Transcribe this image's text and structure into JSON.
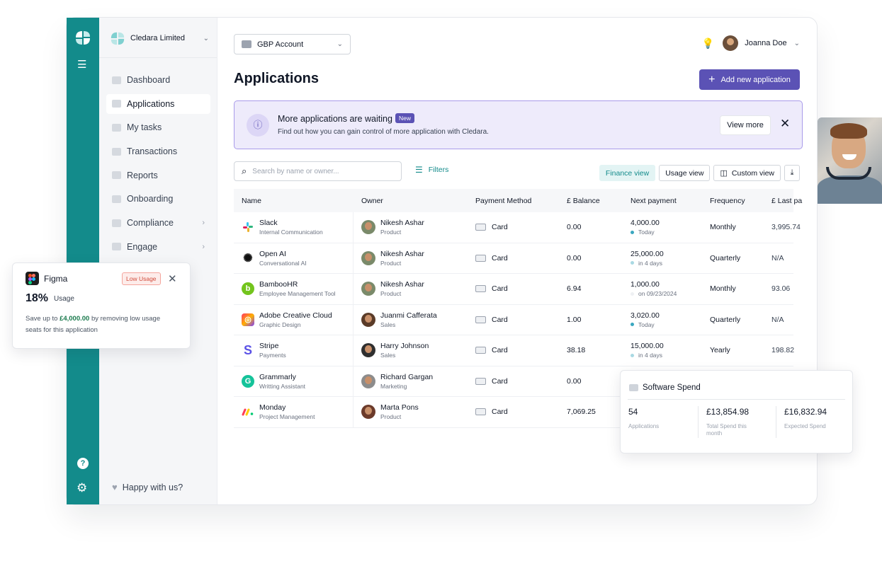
{
  "org": {
    "name": "Cledara Limited"
  },
  "sidebar": {
    "items": [
      {
        "label": "Dashboard"
      },
      {
        "label": "Applications"
      },
      {
        "label": "My tasks"
      },
      {
        "label": "Transactions"
      },
      {
        "label": "Reports"
      },
      {
        "label": "Onboarding"
      },
      {
        "label": "Compliance"
      },
      {
        "label": "Engage"
      }
    ],
    "footer": "Happy with us?"
  },
  "header": {
    "account": "GBP Account",
    "user_name": "Joanna Doe"
  },
  "page": {
    "title": "Applications",
    "add_button": "Add new application"
  },
  "banner": {
    "title": "More applications are waiting",
    "badge": "New",
    "subtitle": "Find out how you can gain control of more application with Cledara.",
    "view_more": "View more"
  },
  "toolbar": {
    "search_placeholder": "Search by name or owner...",
    "filters": "Filters",
    "finance_view": "Finance view",
    "usage_view": "Usage view",
    "custom_view": "Custom view"
  },
  "table": {
    "columns": [
      "Name",
      "Owner",
      "Payment Method",
      "£ Balance",
      "Next payment",
      "Frequency",
      "£ Last pa"
    ],
    "rows": [
      {
        "app": "Slack",
        "category": "Internal Communication",
        "owner": "Nikesh Ashar",
        "dept": "Product",
        "method": "Card",
        "balance": "0.00",
        "next_amount": "4,000.00",
        "next_when": "Today",
        "frequency": "Monthly",
        "last": "3,995.74"
      },
      {
        "app": "Open AI",
        "category": "Conversational AI",
        "owner": "Nikesh Ashar",
        "dept": "Product",
        "method": "Card",
        "balance": "0.00",
        "next_amount": "25,000.00",
        "next_when": "in 4 days",
        "frequency": "Quarterly",
        "last": "N/A"
      },
      {
        "app": "BambooHR",
        "category": "Employee Management Tool",
        "owner": "Nikesh Ashar",
        "dept": "Product",
        "method": "Card",
        "balance": "6.94",
        "next_amount": "1,000.00",
        "next_when": "on 09/23/2024",
        "frequency": "Monthly",
        "last": "93.06"
      },
      {
        "app": "Adobe Creative Cloud",
        "category": "Graphic Design",
        "owner": "Juanmi Cafferata",
        "dept": "Sales",
        "method": "Card",
        "balance": "1.00",
        "next_amount": "3,020.00",
        "next_when": "Today",
        "frequency": "Quarterly",
        "last": "N/A"
      },
      {
        "app": "Stripe",
        "category": "Payments",
        "owner": "Harry Johnson",
        "dept": "Sales",
        "method": "Card",
        "balance": "38.18",
        "next_amount": "15,000.00",
        "next_when": "in 4 days",
        "frequency": "Yearly",
        "last": "198.82"
      },
      {
        "app": "Grammarly",
        "category": "Writting Assistant",
        "owner": "Richard Gargan",
        "dept": "Marketing",
        "method": "Card",
        "balance": "0.00",
        "next_amount": "",
        "next_when": "",
        "frequency": "",
        "last": ""
      },
      {
        "app": "Monday",
        "category": "Project Management",
        "owner": "Marta Pons",
        "dept": "Product",
        "method": "Card",
        "balance": "7,069.25",
        "next_amount": "",
        "next_when": "",
        "frequency": "",
        "last": ""
      }
    ]
  },
  "figma_card": {
    "name": "Figma",
    "badge": "Low Usage",
    "percent": "18%",
    "usage_label": "Usage",
    "desc_prefix": "Save up to ",
    "desc_amount": "£4,000.00",
    "desc_suffix": " by removing low usage seats for this application"
  },
  "spend": {
    "title": "Software Spend",
    "applications_value": "54",
    "applications_label": "Applications",
    "total_value": "£13,854.98",
    "total_label": "Total Spend this month",
    "expected_value": "£16,832.94",
    "expected_label": "Expected Spend"
  },
  "colors": {
    "brand_teal": "#138b8b",
    "accent_purple": "#5b52b5",
    "banner_bg": "#eeebfb",
    "low_usage_red": "#d14b3b"
  }
}
